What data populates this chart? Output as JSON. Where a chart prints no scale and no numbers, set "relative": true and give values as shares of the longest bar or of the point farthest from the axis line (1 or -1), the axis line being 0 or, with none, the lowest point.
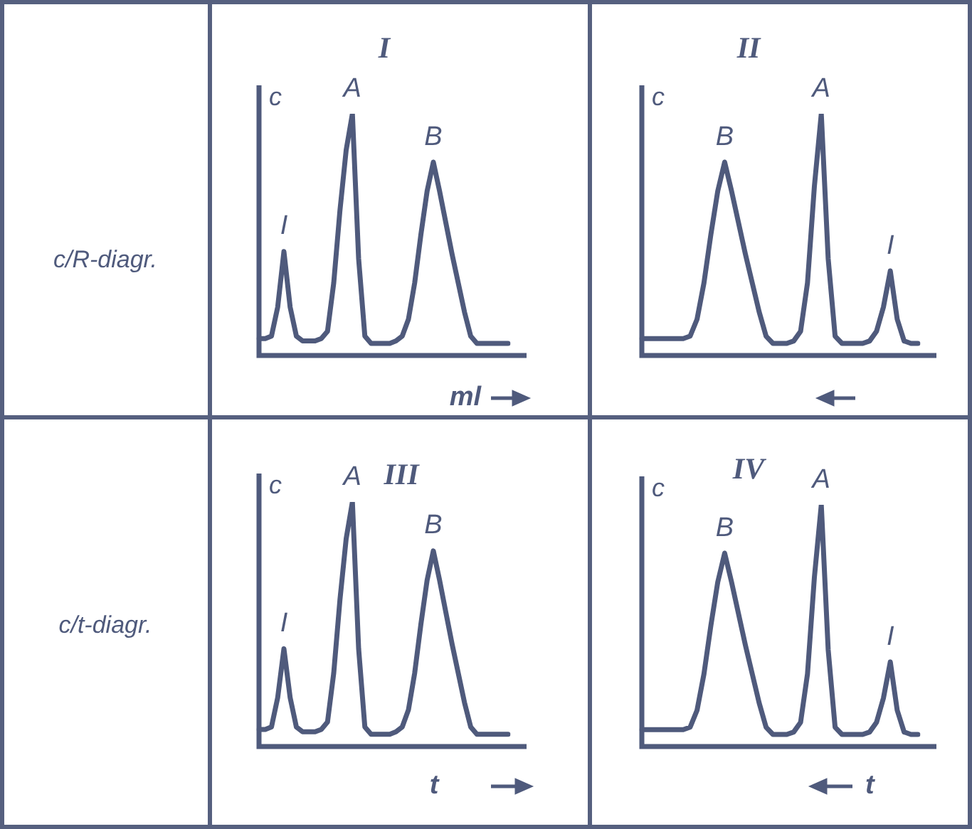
{
  "chart_data": [
    {
      "type": "line",
      "title": "I",
      "ylabel": "c",
      "xlabel": "ml",
      "relative": true,
      "line_style": "solid",
      "color": "#4f5a7c",
      "annotations": [
        "c/R-diagr.",
        {
          "text": "I",
          "y": 0.43
        },
        {
          "text": "A",
          "y": 1.0
        },
        {
          "text": "B",
          "y": 0.8
        }
      ],
      "categories": [
        null,
        null,
        null,
        null,
        null,
        null,
        null,
        null,
        null,
        null,
        null,
        null,
        null,
        null,
        null,
        null,
        null,
        null,
        null,
        null,
        null,
        null,
        null,
        null,
        null,
        null,
        null,
        null,
        null,
        null,
        null,
        null,
        null,
        null,
        null,
        null,
        null,
        null,
        null,
        null,
        null
      ],
      "values": [
        0.07,
        0.07,
        0.08,
        0.2,
        0.43,
        0.2,
        0.08,
        0.06,
        0.06,
        0.06,
        0.07,
        0.1,
        0.3,
        0.6,
        0.85,
        1.0,
        0.4,
        0.08,
        0.05,
        0.05,
        0.05,
        0.05,
        0.06,
        0.08,
        0.15,
        0.3,
        0.5,
        0.68,
        0.8,
        0.68,
        0.55,
        0.42,
        0.3,
        0.18,
        0.08,
        0.05,
        0.05,
        0.05,
        0.05,
        0.05,
        0.05
      ]
    },
    {
      "type": "line",
      "title": "II",
      "ylabel": "c",
      "relative": true,
      "line_style": "solid",
      "color": "#4f5a7c",
      "annotations": [
        {
          "text": "B",
          "y": 0.8
        },
        {
          "text": "A",
          "y": 1.0
        },
        {
          "text": "I",
          "y": 0.35
        }
      ],
      "categories": [
        null,
        null,
        null,
        null,
        null,
        null,
        null,
        null,
        null,
        null,
        null,
        null,
        null,
        null,
        null,
        null,
        null,
        null,
        null,
        null,
        null,
        null,
        null,
        null,
        null,
        null,
        null,
        null,
        null,
        null,
        null,
        null,
        null,
        null,
        null,
        null,
        null,
        null,
        null,
        null,
        null
      ],
      "values": [
        0.07,
        0.07,
        0.07,
        0.07,
        0.07,
        0.07,
        0.07,
        0.08,
        0.15,
        0.3,
        0.5,
        0.68,
        0.8,
        0.68,
        0.55,
        0.42,
        0.3,
        0.18,
        0.08,
        0.05,
        0.05,
        0.05,
        0.06,
        0.1,
        0.3,
        0.7,
        1.0,
        0.4,
        0.08,
        0.05,
        0.05,
        0.05,
        0.05,
        0.06,
        0.1,
        0.2,
        0.35,
        0.15,
        0.06,
        0.05,
        0.05
      ]
    },
    {
      "type": "line",
      "title": "III",
      "ylabel": "c",
      "xlabel": "t",
      "relative": true,
      "line_style": "solid",
      "color": "#4f5a7c",
      "annotations": [
        "c/t-diagr.",
        {
          "text": "I",
          "y": 0.4
        },
        {
          "text": "A",
          "y": 1.0
        },
        {
          "text": "B",
          "y": 0.8
        }
      ],
      "categories": [
        null,
        null,
        null,
        null,
        null,
        null,
        null,
        null,
        null,
        null,
        null,
        null,
        null,
        null,
        null,
        null,
        null,
        null,
        null,
        null,
        null,
        null,
        null,
        null,
        null,
        null,
        null,
        null,
        null,
        null,
        null,
        null,
        null,
        null,
        null,
        null,
        null,
        null,
        null,
        null,
        null
      ],
      "values": [
        0.07,
        0.07,
        0.08,
        0.2,
        0.4,
        0.2,
        0.08,
        0.06,
        0.06,
        0.06,
        0.07,
        0.1,
        0.3,
        0.6,
        0.85,
        1.0,
        0.4,
        0.08,
        0.05,
        0.05,
        0.05,
        0.05,
        0.06,
        0.08,
        0.15,
        0.3,
        0.5,
        0.68,
        0.8,
        0.68,
        0.55,
        0.42,
        0.3,
        0.18,
        0.08,
        0.05,
        0.05,
        0.05,
        0.05,
        0.05,
        0.05
      ]
    },
    {
      "type": "line",
      "title": "IV",
      "ylabel": "c",
      "xlabel": "t",
      "relative": true,
      "line_style": "solid",
      "color": "#4f5a7c",
      "annotations": [
        {
          "text": "B",
          "y": 0.8
        },
        {
          "text": "A",
          "y": 1.0
        },
        {
          "text": "I",
          "y": 0.35
        }
      ],
      "categories": [
        null,
        null,
        null,
        null,
        null,
        null,
        null,
        null,
        null,
        null,
        null,
        null,
        null,
        null,
        null,
        null,
        null,
        null,
        null,
        null,
        null,
        null,
        null,
        null,
        null,
        null,
        null,
        null,
        null,
        null,
        null,
        null,
        null,
        null,
        null,
        null,
        null,
        null,
        null,
        null,
        null
      ],
      "values": [
        0.07,
        0.07,
        0.07,
        0.07,
        0.07,
        0.07,
        0.07,
        0.08,
        0.15,
        0.3,
        0.5,
        0.68,
        0.8,
        0.68,
        0.55,
        0.42,
        0.3,
        0.18,
        0.08,
        0.05,
        0.05,
        0.05,
        0.06,
        0.1,
        0.3,
        0.7,
        1.0,
        0.4,
        0.08,
        0.05,
        0.05,
        0.05,
        0.05,
        0.06,
        0.1,
        0.2,
        0.35,
        0.15,
        0.06,
        0.05,
        0.05
      ]
    }
  ]
}
